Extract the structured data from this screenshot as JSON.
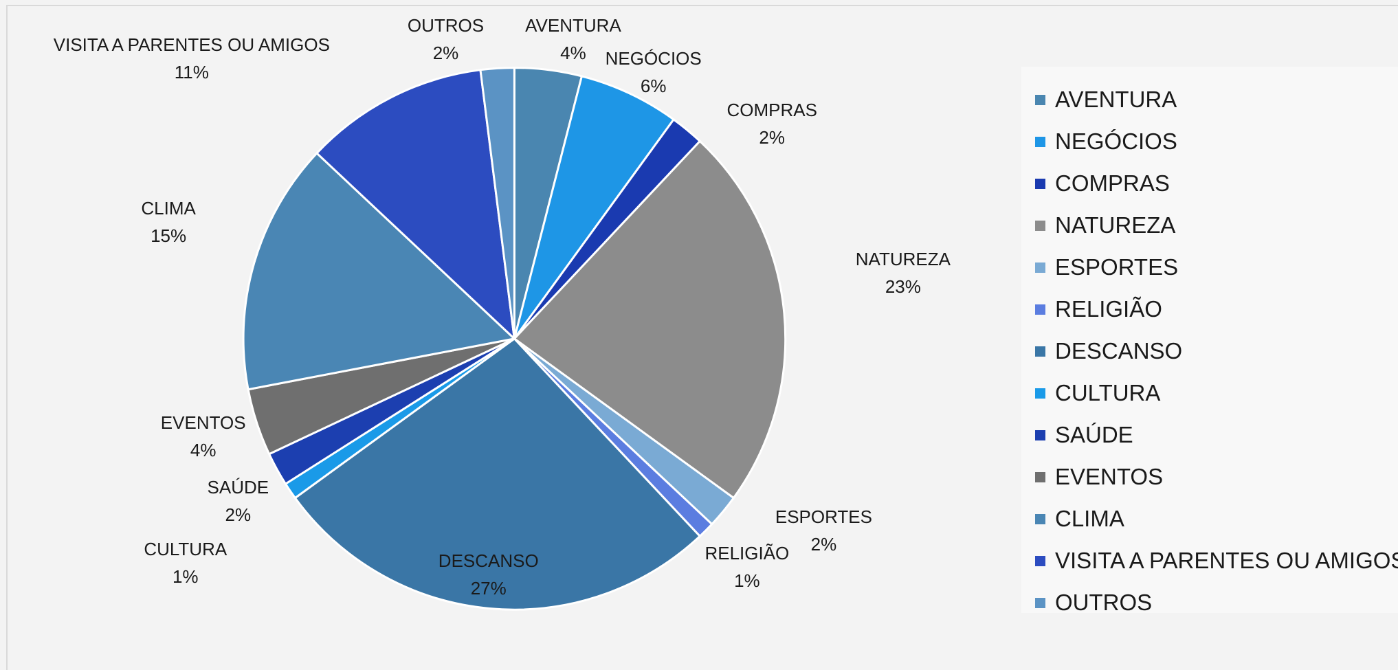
{
  "chart_data": {
    "type": "pie",
    "categories": [
      "AVENTURA",
      "NEGÓCIOS",
      "COMPRAS",
      "NATUREZA",
      "ESPORTES",
      "RELIGIÃO",
      "DESCANSO",
      "CULTURA",
      "SAÚDE",
      "EVENTOS",
      "CLIMA",
      "VISITA A PARENTES OU AMIGOS",
      "OUTROS"
    ],
    "values": [
      4,
      6,
      2,
      23,
      2,
      1,
      27,
      1,
      2,
      4,
      15,
      11,
      2
    ],
    "value_labels": [
      "4%",
      "6%",
      "2%",
      "23%",
      "2%",
      "1%",
      "27%",
      "1%",
      "2%",
      "4%",
      "15%",
      "11%",
      "2%"
    ],
    "colors": [
      "#4a86b0",
      "#1e96e6",
      "#1a3ab0",
      "#8c8c8c",
      "#7aaad4",
      "#5b7de0",
      "#3a76a6",
      "#1a9ae8",
      "#1c3fb0",
      "#6f6f6f",
      "#4a86b4",
      "#2c4cc0",
      "#5b93c4"
    ],
    "legend": "right"
  }
}
